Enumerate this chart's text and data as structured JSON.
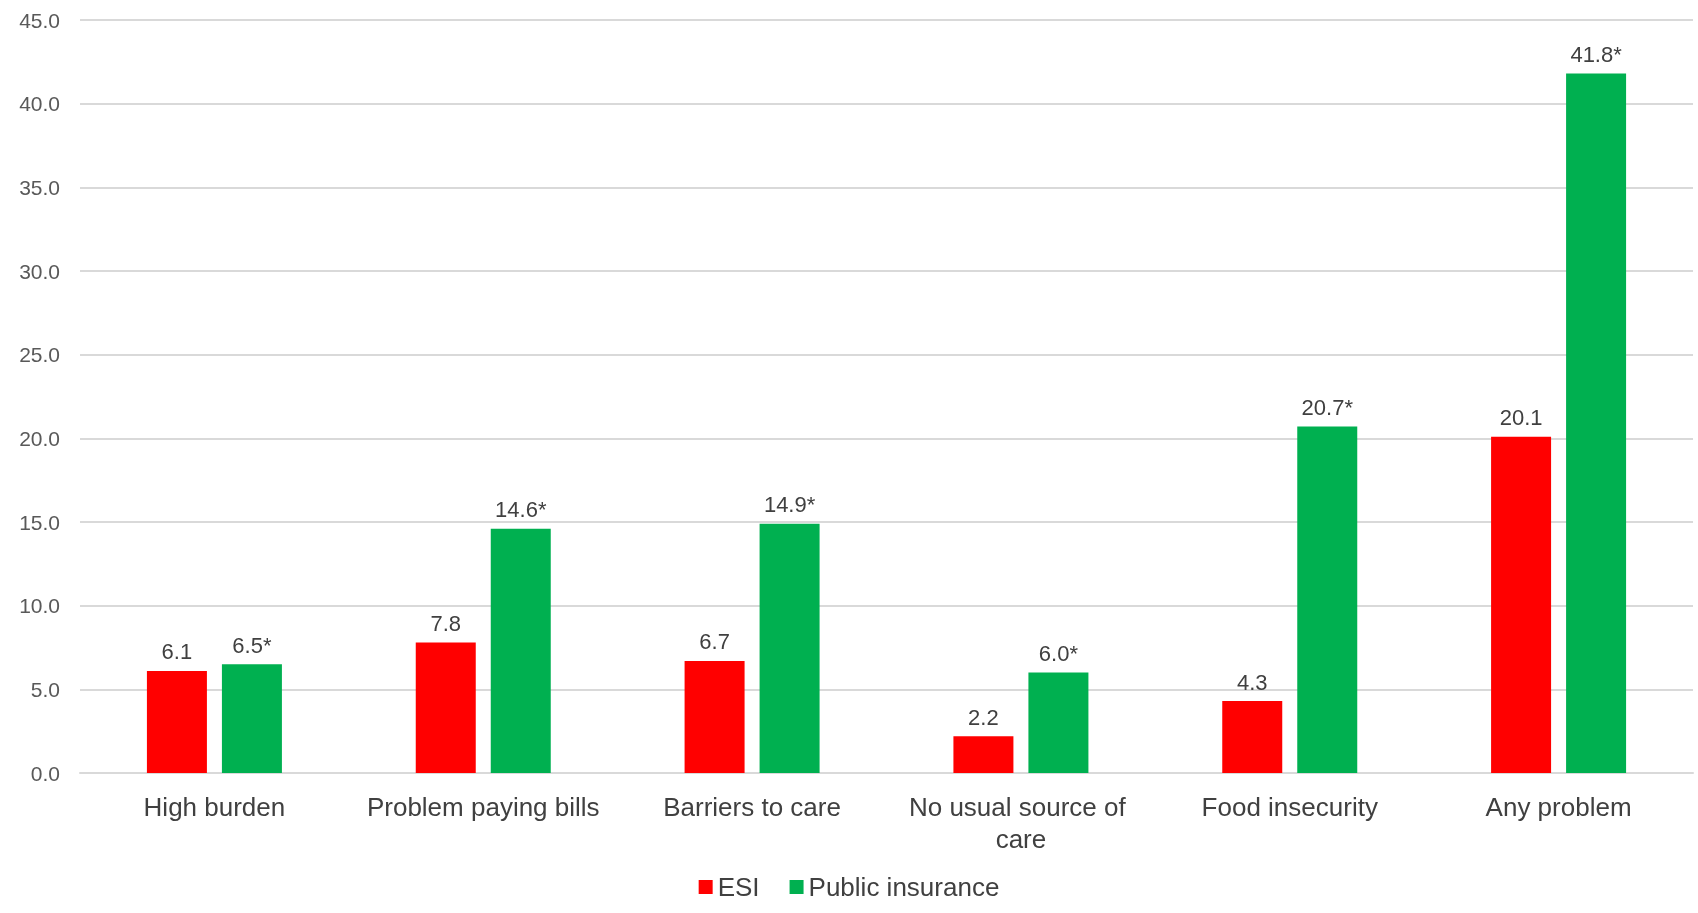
{
  "chart_data": {
    "type": "bar",
    "categories": [
      "High burden",
      "Problem paying bills",
      "Barriers to care",
      "No usual source of care",
      "Food insecurity",
      "Any problem"
    ],
    "series": [
      {
        "name": "ESI",
        "color": "#ff0000",
        "values": [
          6.1,
          7.8,
          6.7,
          2.2,
          4.3,
          20.1
        ],
        "value_labels": [
          "6.1",
          "7.8",
          "6.7",
          "2.2",
          "4.3",
          "20.1"
        ]
      },
      {
        "name": "Public insurance",
        "color": "#00b050",
        "values": [
          6.5,
          14.6,
          14.9,
          6.0,
          20.7,
          41.8
        ],
        "value_labels": [
          "6.5*",
          "14.6*",
          "14.9*",
          "6.0*",
          "20.7*",
          "41.8*"
        ]
      }
    ],
    "ylim": [
      0,
      45
    ],
    "yticks": [
      {
        "value": 0,
        "label": "0.0"
      },
      {
        "value": 5,
        "label": "5.0"
      },
      {
        "value": 10,
        "label": "10.0"
      },
      {
        "value": 15,
        "label": "15.0"
      },
      {
        "value": 20,
        "label": "20.0"
      },
      {
        "value": 25,
        "label": "25.0"
      },
      {
        "value": 30,
        "label": "30.0"
      },
      {
        "value": 35,
        "label": "35.0"
      },
      {
        "value": 40,
        "label": "40.0"
      },
      {
        "value": 45,
        "label": "45.0"
      }
    ],
    "grid": "y",
    "legend": "bottom"
  }
}
